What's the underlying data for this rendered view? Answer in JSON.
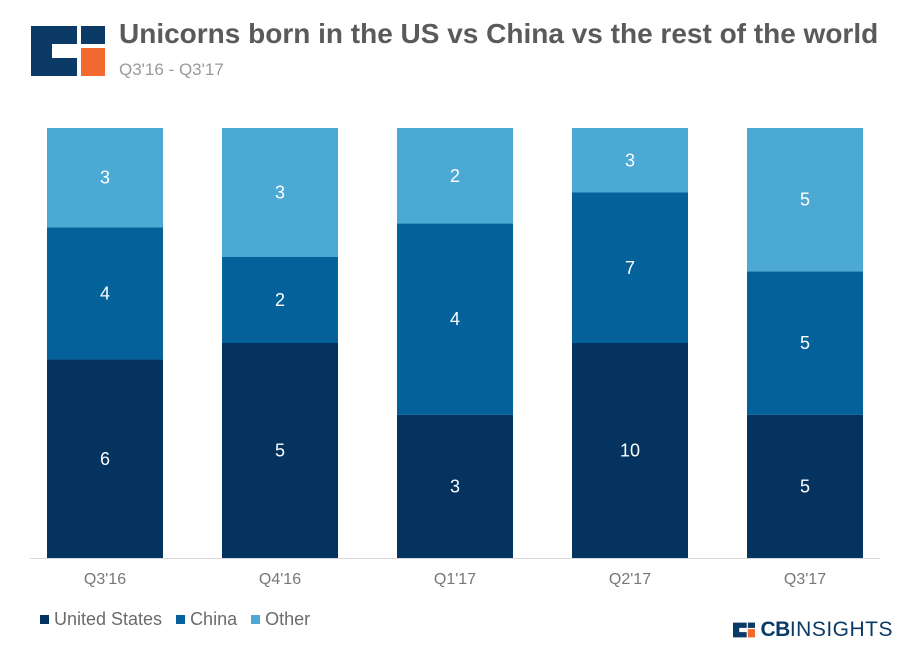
{
  "header": {
    "logo_icon": "cb-insights-logo-icon",
    "title": "Unicorns born in the US vs China vs the rest of the world",
    "subtitle": "Q3'16 - Q3'17"
  },
  "brand": {
    "icon": "cb-insights-mark-icon",
    "cb": "CB",
    "insights": "INSIGHTS"
  },
  "colors": {
    "united_states": "#03335e",
    "china": "#04619a",
    "other": "#4ba9d3",
    "accent": "#f26a2f",
    "title": "#5a5a5a",
    "axis_text": "#777777"
  },
  "chart_data": {
    "type": "bar",
    "stacked": true,
    "normalized_percent": true,
    "categories": [
      "Q3'16",
      "Q4'16",
      "Q1'17",
      "Q2'17",
      "Q3'17"
    ],
    "series": [
      {
        "name": "United States",
        "values": [
          6,
          5,
          3,
          10,
          5
        ]
      },
      {
        "name": "China",
        "values": [
          4,
          2,
          4,
          7,
          5
        ]
      },
      {
        "name": "Other",
        "values": [
          3,
          3,
          2,
          3,
          5
        ]
      }
    ],
    "title": "Unicorns born in the US vs China vs the rest of the world",
    "subtitle": "Q3'16 - Q3'17",
    "xlabel": "",
    "ylabel": "",
    "grid": false,
    "legend_position": "bottom-left"
  }
}
